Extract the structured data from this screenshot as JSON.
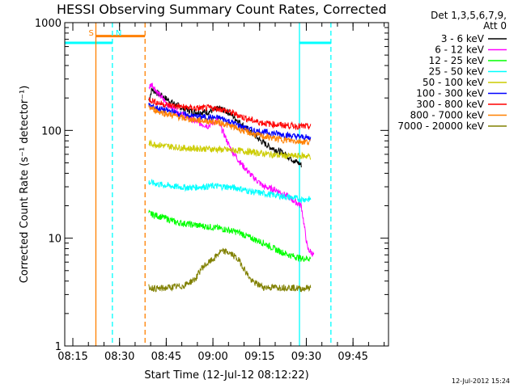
{
  "chart_data": {
    "type": "line",
    "title": "HESSI Observing Summary Count Rates, Corrected",
    "xlabel": "Start Time (12-Jul-12 08:12:22)",
    "ylabel": "Corrected Count Rate (s⁻¹ detector⁻¹)",
    "yscale": "log",
    "ylim": [
      1,
      1000
    ],
    "xlim_min": [
      0,
      104
    ],
    "x_tick_labels": [
      "08:15",
      "08:30",
      "08:45",
      "09:00",
      "09:15",
      "09:30",
      "09:45"
    ],
    "x_tick_min": [
      2.6,
      17.6,
      32.6,
      47.6,
      62.6,
      77.6,
      92.6
    ],
    "y_tick_labels": [
      "1",
      "10",
      "100",
      "1000"
    ],
    "y_tick_values": [
      1,
      10,
      100,
      1000
    ],
    "legend_header": [
      "Det 1,3,5,6,7,9,",
      "Att 0"
    ],
    "legend_position": "right",
    "series": [
      {
        "name": "3 - 6 keV",
        "color": "#000000",
        "x": [
          27,
          28,
          30,
          34,
          38,
          42,
          46,
          48,
          50,
          53,
          56,
          60,
          63,
          66,
          70,
          74,
          76
        ],
        "y": [
          190,
          240,
          220,
          185,
          160,
          148,
          148,
          155,
          160,
          145,
          120,
          95,
          80,
          70,
          62,
          52,
          48
        ]
      },
      {
        "name": "6 - 12 keV",
        "color": "#ff00ff",
        "x": [
          27,
          28,
          30,
          33,
          36,
          40,
          43,
          46,
          49,
          51,
          53,
          56,
          60,
          64,
          68,
          72,
          76,
          78,
          80
        ],
        "y": [
          250,
          270,
          220,
          175,
          150,
          130,
          118,
          110,
          125,
          95,
          70,
          52,
          38,
          30,
          28,
          24,
          20,
          8,
          7
        ]
      },
      {
        "name": "12 - 25 keV",
        "color": "#00ff00",
        "x": [
          27,
          32,
          36,
          40,
          44,
          48,
          52,
          56,
          60,
          64,
          68,
          72,
          76,
          79
        ],
        "y": [
          17,
          15.5,
          14,
          13.5,
          13,
          12.6,
          12,
          11.3,
          10,
          9,
          7.8,
          7,
          6.5,
          6.5
        ]
      },
      {
        "name": "25 - 50 keV",
        "color": "#00ffff",
        "x": [
          27,
          32,
          36,
          40,
          44,
          48,
          52,
          56,
          60,
          64,
          68,
          72,
          76,
          79
        ],
        "y": [
          33,
          31,
          30,
          29.5,
          30,
          30.5,
          30,
          29,
          27,
          26,
          25,
          24,
          23,
          23
        ]
      },
      {
        "name": "50 - 100 keV",
        "color": "#cccc00",
        "x": [
          27,
          32,
          36,
          40,
          44,
          48,
          52,
          56,
          60,
          64,
          68,
          72,
          76,
          79
        ],
        "y": [
          76,
          72,
          70,
          68,
          68,
          67,
          66,
          65,
          63,
          61,
          59,
          58,
          58,
          58
        ]
      },
      {
        "name": "100 - 300 keV",
        "color": "#0000ff",
        "x": [
          27,
          30,
          34,
          38,
          42,
          46,
          50,
          54,
          58,
          62,
          66,
          70,
          74,
          79
        ],
        "y": [
          170,
          160,
          150,
          140,
          135,
          132,
          130,
          118,
          105,
          98,
          95,
          92,
          88,
          85
        ]
      },
      {
        "name": "300 - 800 keV",
        "color": "#ff0000",
        "x": [
          27,
          30,
          34,
          38,
          42,
          46,
          50,
          54,
          58,
          62,
          66,
          70,
          74,
          79
        ],
        "y": [
          195,
          180,
          170,
          165,
          160,
          162,
          158,
          145,
          130,
          120,
          115,
          112,
          110,
          108
        ]
      },
      {
        "name": "800 - 7000 keV",
        "color": "#ff8000",
        "x": [
          27,
          30,
          34,
          38,
          42,
          46,
          50,
          54,
          58,
          62,
          66,
          70,
          74,
          79
        ],
        "y": [
          165,
          150,
          140,
          130,
          125,
          122,
          118,
          108,
          98,
          90,
          86,
          82,
          80,
          78
        ]
      },
      {
        "name": "7000 - 20000 keV",
        "color": "#808000",
        "x": [
          27,
          30,
          34,
          38,
          42,
          44,
          48,
          50,
          52,
          54,
          56,
          58,
          60,
          64,
          68,
          72,
          76,
          79
        ],
        "y": [
          3.5,
          3.4,
          3.5,
          3.6,
          4.2,
          5.3,
          6.5,
          7.5,
          7.5,
          7,
          6.2,
          5,
          4,
          3.5,
          3.5,
          3.5,
          3.4,
          3.5
        ]
      }
    ],
    "markers": [
      {
        "label": "S",
        "x_min": 10,
        "color": "#ff8000",
        "style": "solid"
      },
      {
        "label": "N",
        "x_min": 15.3,
        "color": "#00ffff",
        "style": "dashed"
      },
      {
        "label": "",
        "x_min": 25.8,
        "color": "#ff8000",
        "style": "dashed"
      },
      {
        "label": "",
        "x_min": 75.4,
        "color": "#00ffff",
        "style": "solid"
      },
      {
        "label": "",
        "x_min": 85.5,
        "color": "#00ffff",
        "style": "dashed"
      }
    ],
    "bars": [
      {
        "x_start": 0,
        "x_end": 15.3,
        "y": 650,
        "color": "#00ffff"
      },
      {
        "x_start": 10,
        "x_end": 25.8,
        "y": 750,
        "color": "#ff8000"
      },
      {
        "x_start": 75.4,
        "x_end": 85.5,
        "y": 650,
        "color": "#00ffff"
      }
    ],
    "footer_date": "12-Jul-2012 15:24"
  }
}
